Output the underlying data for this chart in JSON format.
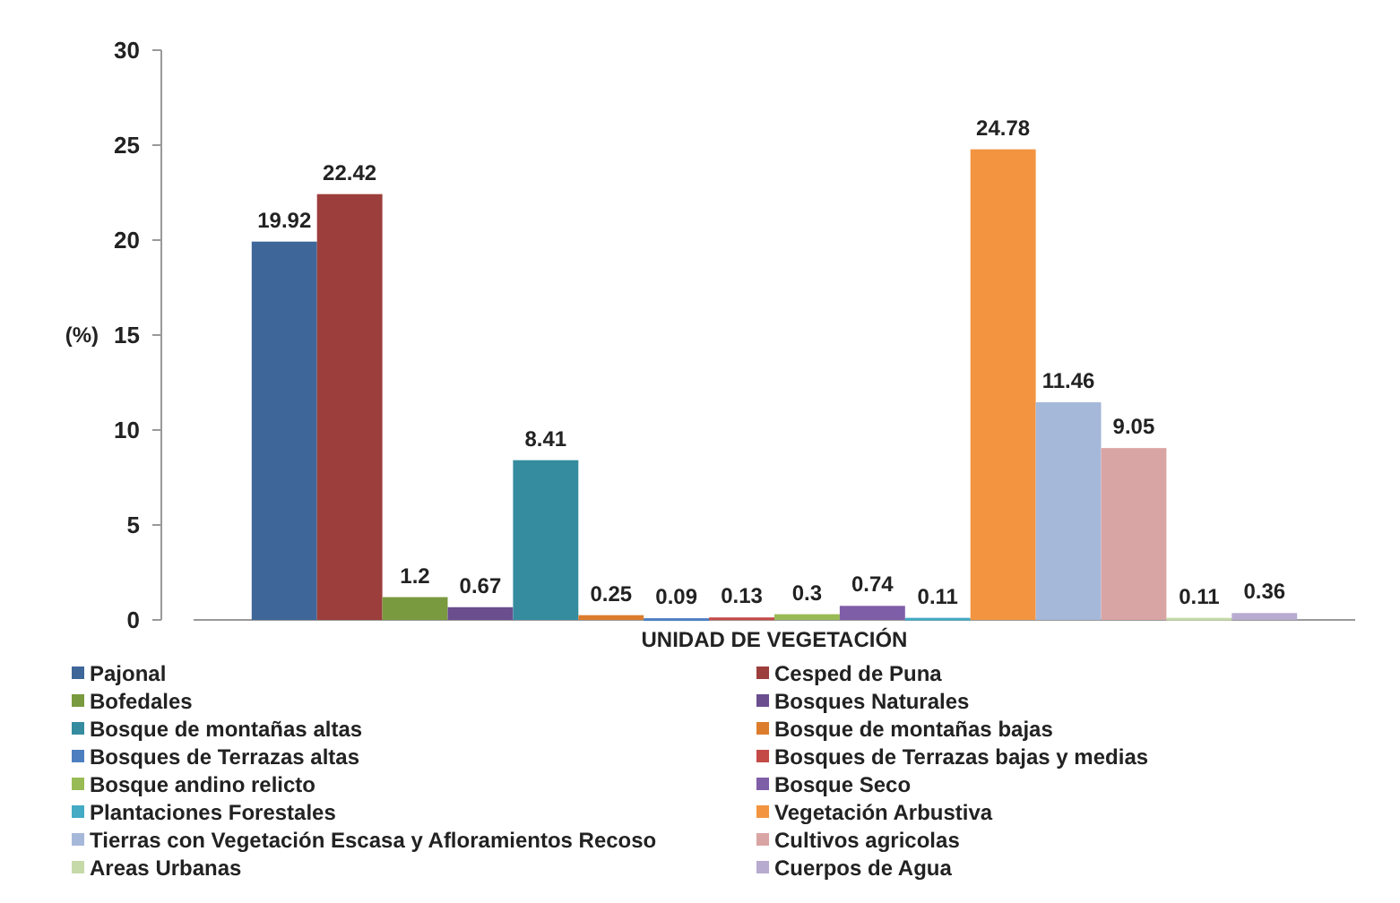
{
  "chart_data": {
    "type": "bar",
    "xlabel": "UNIDAD DE VEGETACIÓN",
    "ylabel": "(%)",
    "categories": [
      null
    ],
    "ylim": [
      0,
      30
    ],
    "yticks": [
      0,
      5,
      10,
      15,
      20,
      25,
      30
    ],
    "grid": false,
    "legend": "bottom",
    "data_labels": true,
    "series": [
      {
        "name": "Pajonal",
        "color": "#3f6699",
        "values": [
          19.92
        ]
      },
      {
        "name": "Cesped de Puna",
        "color": "#9c3e3b",
        "values": [
          22.42
        ]
      },
      {
        "name": "Bofedales",
        "color": "#7a9a3f",
        "values": [
          1.2
        ]
      },
      {
        "name": "Bosques Naturales",
        "color": "#6a4e8e",
        "values": [
          0.67
        ]
      },
      {
        "name": "Bosque de montañas altas",
        "color": "#358c9f",
        "values": [
          8.41
        ]
      },
      {
        "name": "Bosque de montañas bajas",
        "color": "#dc7d2e",
        "values": [
          0.25
        ]
      },
      {
        "name": "Bosques de Terrazas altas",
        "color": "#4d7fc0",
        "values": [
          0.09
        ]
      },
      {
        "name": "Bosques de Terrazas  bajas y medias",
        "color": "#c44a48",
        "values": [
          0.13
        ]
      },
      {
        "name": "Bosque andino relicto",
        "color": "#98bb55",
        "values": [
          0.3
        ]
      },
      {
        "name": "Bosque Seco",
        "color": "#7f5ea8",
        "values": [
          0.74
        ]
      },
      {
        "name": "Plantaciones Forestales",
        "color": "#45aac4",
        "values": [
          0.11
        ]
      },
      {
        "name": "Vegetación Arbustiva",
        "color": "#f39540",
        "values": [
          24.78
        ]
      },
      {
        "name": "Tierras con Vegetación Escasa y Afloramientos Recoso",
        "color": "#a6b8d9",
        "values": [
          11.46
        ]
      },
      {
        "name": "Cultivos agricolas",
        "color": "#d9a5a4",
        "values": [
          9.05
        ]
      },
      {
        "name": "Areas Urbanas",
        "color": "#c6d9a8",
        "values": [
          0.11
        ]
      },
      {
        "name": "Cuerpos de Agua",
        "color": "#b7abd0",
        "values": [
          0.36
        ]
      }
    ]
  }
}
